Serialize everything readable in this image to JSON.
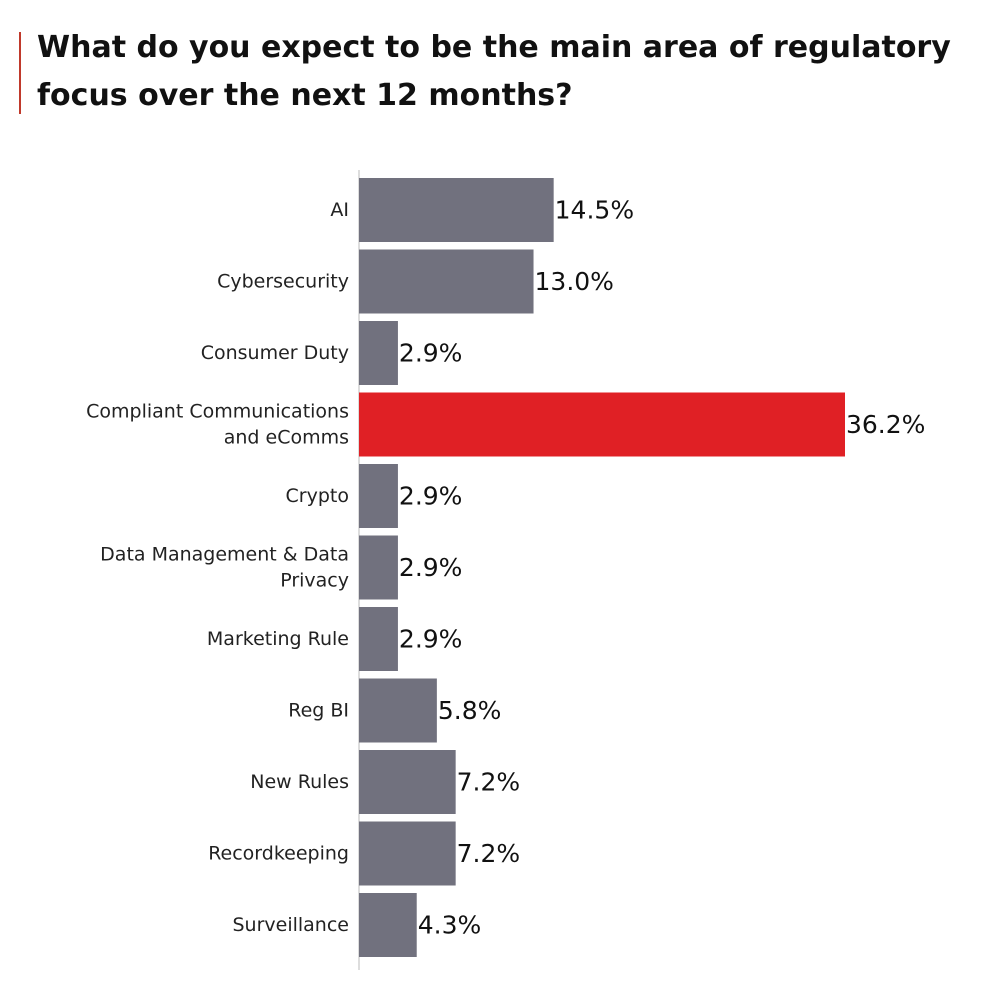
{
  "title": "What do you expect to be the main area of regulatory focus over the next 12 months?",
  "colors": {
    "bar": "#71717e",
    "highlight": "#e02025",
    "accent_rule": "#c0392b",
    "axis": "#bbbbbb"
  },
  "chart_data": {
    "type": "bar",
    "orientation": "horizontal",
    "title": "What do you expect to be the main area of regulatory focus over the next 12 months?",
    "unit": "%",
    "categories": [
      [
        "AI"
      ],
      [
        "Cybersecurity"
      ],
      [
        "Consumer Duty"
      ],
      [
        "Compliant Communications",
        "and eComms"
      ],
      [
        "Crypto"
      ],
      [
        "Data Management & Data",
        "Privacy"
      ],
      [
        "Marketing Rule"
      ],
      [
        "Reg BI"
      ],
      [
        "New Rules"
      ],
      [
        "Recordkeeping"
      ],
      [
        "Surveillance"
      ]
    ],
    "values": [
      14.5,
      13.0,
      2.9,
      36.2,
      2.9,
      2.9,
      2.9,
      5.8,
      7.2,
      7.2,
      4.3
    ],
    "value_labels": [
      "14.5%",
      "13.0%",
      "2.9%",
      "36.2%",
      "2.9%",
      "2.9%",
      "2.9%",
      "5.8%",
      "7.2%",
      "7.2%",
      "4.3%"
    ],
    "highlight_index": 3,
    "xlim": [
      0,
      36.2
    ],
    "grid": false,
    "legend": "none"
  }
}
